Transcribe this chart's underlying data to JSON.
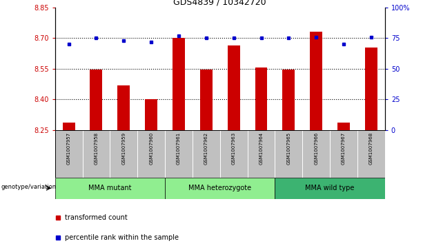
{
  "title": "GDS4839 / 10342720",
  "samples": [
    "GSM1007957",
    "GSM1007958",
    "GSM1007959",
    "GSM1007960",
    "GSM1007961",
    "GSM1007962",
    "GSM1007963",
    "GSM1007964",
    "GSM1007965",
    "GSM1007966",
    "GSM1007967",
    "GSM1007968"
  ],
  "red_values": [
    8.285,
    8.545,
    8.47,
    8.4,
    8.7,
    8.545,
    8.665,
    8.555,
    8.545,
    8.73,
    8.285,
    8.655
  ],
  "blue_values": [
    70,
    75,
    73,
    72,
    77,
    75,
    75,
    75,
    75,
    76,
    70,
    76
  ],
  "ylim_left": [
    8.25,
    8.85
  ],
  "ylim_right": [
    0,
    100
  ],
  "yticks_left": [
    8.25,
    8.4,
    8.55,
    8.7,
    8.85
  ],
  "yticks_right": [
    0,
    25,
    50,
    75,
    100
  ],
  "ytick_labels_right": [
    "0",
    "25",
    "50",
    "75",
    "100%"
  ],
  "hlines": [
    8.4,
    8.55,
    8.7
  ],
  "groups": [
    {
      "label": "MMA mutant",
      "start": 0,
      "end": 4,
      "color": "#90EE90"
    },
    {
      "label": "MMA heterozygote",
      "start": 4,
      "end": 8,
      "color": "#90EE90"
    },
    {
      "label": "MMA wild type",
      "start": 8,
      "end": 12,
      "color": "#3CB371"
    }
  ],
  "bar_color": "#CC0000",
  "dot_color": "#0000CC",
  "left_tick_color": "#CC0000",
  "right_tick_color": "#0000CC",
  "tick_area_bg": "#C0C0C0",
  "legend_red": "transformed count",
  "legend_blue": "percentile rank within the sample",
  "genotype_label": "genotype/variation"
}
